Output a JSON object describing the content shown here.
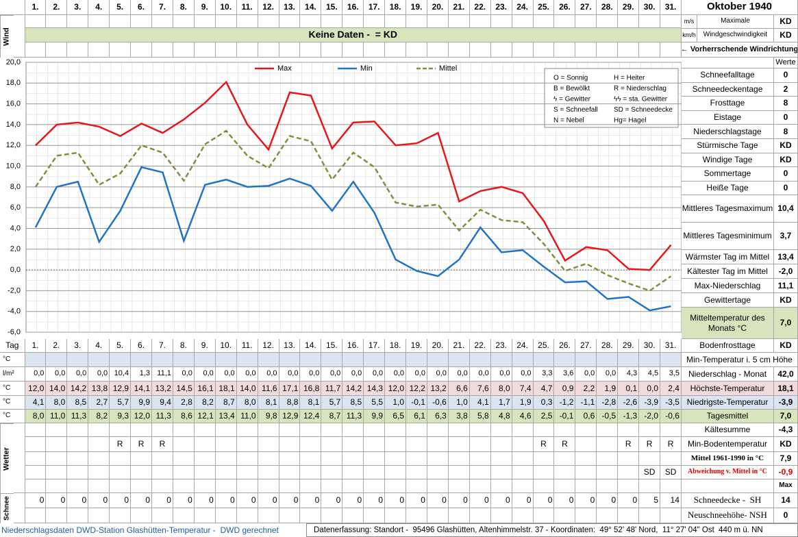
{
  "header": {
    "title": "Oktober 1940"
  },
  "wind": {
    "label": "Wind",
    "units": [
      "m/s",
      "km/h"
    ],
    "caption": [
      "Maximale",
      "Windgeschwindigkeit"
    ],
    "values": [
      "KD",
      "KD"
    ],
    "no_data": "Keine Daten -  = KD",
    "direction": "← Vorherrschende Windrichtung"
  },
  "chart_data": {
    "type": "line",
    "categories": [
      "1.",
      "2.",
      "3.",
      "4.",
      "5.",
      "6.",
      "7.",
      "8.",
      "9.",
      "10.",
      "11.",
      "12.",
      "13.",
      "14.",
      "15.",
      "16.",
      "17.",
      "18.",
      "19.",
      "20.",
      "21.",
      "22.",
      "23.",
      "24.",
      "25.",
      "26.",
      "27.",
      "28.",
      "29.",
      "30.",
      "31."
    ],
    "ylim": [
      -6,
      20
    ],
    "yticks": [
      {
        "value": -6,
        "label": "-6,0"
      },
      {
        "value": -4,
        "label": "-4,0"
      },
      {
        "value": -2,
        "label": "-2,0"
      },
      {
        "value": 0,
        "label": "0,0"
      },
      {
        "value": 2,
        "label": "2,0"
      },
      {
        "value": 4,
        "label": "4,0"
      },
      {
        "value": 6,
        "label": "6,0"
      },
      {
        "value": 8,
        "label": "8,0"
      },
      {
        "value": 10,
        "label": "10,0"
      },
      {
        "value": 12,
        "label": "12,0"
      },
      {
        "value": 14,
        "label": "14,0"
      },
      {
        "value": 16,
        "label": "16,0"
      },
      {
        "value": 18,
        "label": "18,0"
      },
      {
        "value": 20,
        "label": "20,0"
      }
    ],
    "grid": true,
    "series": [
      {
        "name": "Max",
        "color": "#e8161b",
        "dashed": false,
        "values": [
          12.0,
          14.0,
          14.2,
          13.8,
          12.9,
          14.1,
          13.2,
          14.5,
          16.1,
          18.1,
          14.0,
          11.6,
          17.1,
          16.8,
          11.7,
          14.2,
          14.3,
          12.0,
          12.2,
          13.2,
          6.6,
          7.6,
          8.0,
          7.4,
          4.7,
          0.9,
          2.2,
          1.9,
          0.1,
          0.0,
          2.4
        ],
        "value_labels": [
          "12,0",
          "14,0",
          "14,2",
          "13,8",
          "12,9",
          "14,1",
          "13,2",
          "14,5",
          "16,1",
          "18,1",
          "14,0",
          "11,6",
          "17,1",
          "16,8",
          "11,7",
          "14,2",
          "14,3",
          "12,0",
          "12,2",
          "13,2",
          "6,6",
          "7,6",
          "8,0",
          "7,4",
          "4,7",
          "0,9",
          "2,2",
          "1,9",
          "0,1",
          "0,0",
          "2,4"
        ]
      },
      {
        "name": "Min",
        "color": "#1f73c4",
        "dashed": false,
        "values": [
          4.1,
          8.0,
          8.5,
          2.7,
          5.7,
          9.9,
          9.4,
          2.8,
          8.2,
          8.7,
          8.0,
          8.1,
          8.8,
          8.1,
          5.7,
          8.5,
          5.5,
          1.0,
          -0.1,
          -0.6,
          1.0,
          4.1,
          1.7,
          1.9,
          0.3,
          -1.2,
          -1.1,
          -2.8,
          -2.6,
          -3.9,
          -3.5
        ],
        "value_labels": [
          "4,1",
          "8,0",
          "8,5",
          "2,7",
          "5,7",
          "9,9",
          "9,4",
          "2,8",
          "8,2",
          "8,7",
          "8,0",
          "8,1",
          "8,8",
          "8,1",
          "5,7",
          "8,5",
          "5,5",
          "1,0",
          "-0,1",
          "-0,6",
          "1,0",
          "4,1",
          "1,7",
          "1,9",
          "0,3",
          "-1,2",
          "-1,1",
          "-2,8",
          "-2,6",
          "-3,9",
          "-3,5"
        ]
      },
      {
        "name": "Mittel",
        "color": "#77933c",
        "dashed": true,
        "values": [
          8.0,
          11.0,
          11.3,
          8.2,
          9.3,
          12.0,
          11.3,
          8.6,
          12.1,
          13.4,
          11.0,
          9.8,
          12.9,
          12.4,
          8.7,
          11.3,
          9.9,
          6.5,
          6.1,
          6.3,
          3.8,
          5.8,
          4.8,
          4.6,
          2.5,
          -0.1,
          0.6,
          -0.5,
          -1.3,
          -2.0,
          -0.6
        ],
        "value_labels": [
          "8,0",
          "11,0",
          "11,3",
          "8,2",
          "9,3",
          "12,0",
          "11,3",
          "8,6",
          "12,1",
          "13,4",
          "11,0",
          "9,8",
          "12,9",
          "12,4",
          "8,7",
          "11,3",
          "9,9",
          "6,5",
          "6,1",
          "6,3",
          "3,8",
          "5,8",
          "4,8",
          "4,6",
          "2,5",
          "-0,1",
          "0,6",
          "-0,5",
          "-1,3",
          "-2,0",
          "-0,6"
        ]
      }
    ]
  },
  "symbol_legend": [
    "O = Sonnig",
    "H = Heiter",
    "B = Bewölkt",
    "R = Niederschlag",
    "ϟ = Gewitter",
    "ϟϟ = sta. Gewitter",
    "S = Schneefall",
    "SD = Schneedecke",
    "N = Nebel",
    "Hg= Hagel"
  ],
  "stats": {
    "header": "Werte",
    "rows": [
      {
        "label": "Schneefalltage",
        "value": "0"
      },
      {
        "label": "Schneedeckentage",
        "value": "2"
      },
      {
        "label": "Frosttage",
        "value": "8"
      },
      {
        "label": "Eistage",
        "value": "0"
      },
      {
        "label": "Niederschlagstage",
        "value": "8"
      },
      {
        "label": "Stürmische Tage",
        "value": "KD"
      },
      {
        "label": "Windige Tage",
        "value": "KD"
      },
      {
        "label": "Sommertage",
        "value": "0"
      },
      {
        "label": "Heiße Tage",
        "value": "0"
      },
      {
        "label": "Mittleres Tagesmaximum",
        "value": "10,4"
      },
      {
        "label": "Mittleres Tagesminimum",
        "value": "3,7"
      },
      {
        "label": "Wärmster Tag im Mittel",
        "value": "13,4"
      },
      {
        "label": "Kältester Tag im Mittel",
        "value": "-2,0"
      },
      {
        "label": "Max-Niederschlag",
        "value": "11,1"
      },
      {
        "label": "Gewittertage",
        "value": "KD"
      },
      {
        "label": "Mitteltemperatur des Monats °C",
        "value": "7,0"
      },
      {
        "label": "Bodenfrosttage",
        "value": "KD"
      }
    ]
  },
  "table": {
    "day_label": "Tag",
    "row_units": [
      "°C",
      "l/m²",
      "°C",
      "°C",
      "°C"
    ],
    "precipitation": [
      "0,0",
      "0,0",
      "0,0",
      "0,0",
      "10,4",
      "1,3",
      "11,1",
      "0,0",
      "0,0",
      "0,0",
      "0,0",
      "0,0",
      "0,0",
      "0,0",
      "0,0",
      "0,0",
      "0,0",
      "0,0",
      "0,0",
      "0,0",
      "0,0",
      "0,0",
      "0,0",
      "0,0",
      "3,3",
      "3,6",
      "0,0",
      "0,0",
      "4,3",
      "4,5",
      "3,5"
    ],
    "weather_label": "Wetter",
    "weather_rain": [
      null,
      null,
      null,
      null,
      "R",
      "R",
      "R",
      null,
      null,
      null,
      null,
      null,
      null,
      null,
      null,
      null,
      null,
      null,
      null,
      null,
      null,
      null,
      null,
      null,
      "R",
      "R",
      null,
      null,
      "R",
      "R",
      "R"
    ],
    "weather_snow_cover": [
      null,
      null,
      null,
      null,
      null,
      null,
      null,
      null,
      null,
      null,
      null,
      null,
      null,
      null,
      null,
      null,
      null,
      null,
      null,
      null,
      null,
      null,
      null,
      null,
      null,
      null,
      null,
      null,
      null,
      "SD",
      "SD"
    ],
    "snow_label": "Schnee",
    "snow": [
      0,
      0,
      0,
      0,
      0,
      0,
      0,
      0,
      0,
      0,
      0,
      0,
      0,
      0,
      0,
      0,
      0,
      0,
      0,
      0,
      0,
      0,
      0,
      0,
      0,
      0,
      0,
      0,
      0,
      5,
      14
    ]
  },
  "summary": {
    "rows": [
      {
        "label": "Min-Temperatur i. 5 cm Höhe"
      },
      {
        "label": "Niederschlag - Monat",
        "value": "42,0"
      },
      {
        "label": "Höchste-Temperatur",
        "value": "18,1"
      },
      {
        "label": "Niedrigste-Temperatur",
        "value": "-3,9"
      },
      {
        "label": "Tagesmittel",
        "value": "7,0"
      },
      {
        "label": "Kältesumme",
        "value": "-4,3"
      },
      {
        "label": "Min-Bodentemperatur",
        "value": "KD"
      },
      {
        "label": "Mittel 1961-1990 in °C",
        "value": "7,9"
      },
      {
        "label": "Abweichung v. Mittel in °C",
        "value": "-0,9"
      },
      {
        "value": "Max"
      },
      {
        "label": "Schneedecke -  SH",
        "value": "14"
      },
      {
        "label": "Neuschneehöhe- NSH",
        "value": "0"
      }
    ]
  },
  "footer": {
    "left": "Niederschlagsdaten DWD-Station Glashütten-Temperatur -  DWD gerechnet",
    "right": "Datenerfassung: Standort -  95496 Glashütten, Altenhimmelstr. 37 - Koordinaten:  49° 52' 48' Nord,  11° 27' 04\" Ost  440 m ü. NN"
  }
}
